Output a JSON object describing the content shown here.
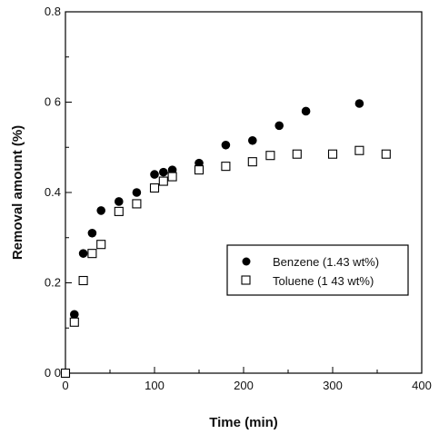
{
  "chart_data": {
    "type": "scatter",
    "title": "",
    "xlabel": "Time (min)",
    "ylabel": "Removal amount (%)",
    "xlim": [
      0,
      400
    ],
    "ylim": [
      0,
      0.8
    ],
    "xticks": [
      0,
      100,
      200,
      300,
      400
    ],
    "xtick_labels": [
      "0",
      "100",
      "200",
      "300",
      "400"
    ],
    "yticks": [
      0,
      0.2,
      0.4,
      0.6,
      0.8
    ],
    "ytick_labels": [
      "0 0",
      "0.2",
      "0.4",
      "0 6",
      "0.8"
    ],
    "grid": false,
    "legend_position": "center-right",
    "series": [
      {
        "name": "Benzene (1.43 wt%)",
        "marker": "filled-circle",
        "color": "#000000",
        "x": [
          0,
          10,
          20,
          30,
          40,
          60,
          80,
          100,
          110,
          120,
          150,
          180,
          210,
          240,
          270,
          330
        ],
        "y": [
          0,
          0.13,
          0.265,
          0.31,
          0.36,
          0.38,
          0.4,
          0.44,
          0.445,
          0.45,
          0.465,
          0.505,
          0.515,
          0.548,
          0.58,
          0.597
        ]
      },
      {
        "name": "Toluene (1 43 wt%)",
        "marker": "open-square",
        "color": "#000000",
        "x": [
          0,
          10,
          20,
          30,
          40,
          60,
          80,
          100,
          110,
          120,
          150,
          180,
          210,
          230,
          260,
          300,
          330,
          360
        ],
        "y": [
          0,
          0.113,
          0.205,
          0.265,
          0.285,
          0.358,
          0.375,
          0.41,
          0.425,
          0.435,
          0.45,
          0.458,
          0.468,
          0.482,
          0.485,
          0.485,
          0.493,
          0.485
        ]
      }
    ]
  }
}
